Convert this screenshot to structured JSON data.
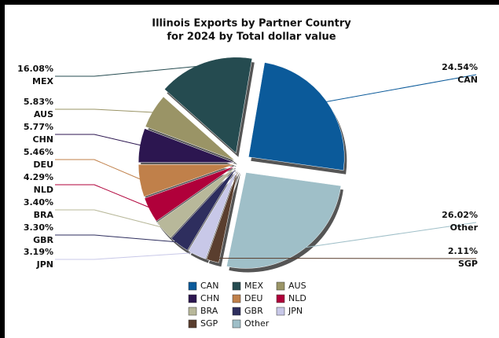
{
  "chart_data": {
    "type": "pie",
    "title": [
      "Illinois Exports by Partner Country",
      "for 2024 by Total dollar value"
    ],
    "categories": [
      "CAN",
      "MEX",
      "AUS",
      "CHN",
      "DEU",
      "NLD",
      "BRA",
      "GBR",
      "JPN",
      "SGP",
      "Other"
    ],
    "values": [
      24.54,
      16.08,
      5.83,
      5.77,
      5.46,
      4.29,
      3.4,
      3.3,
      3.19,
      2.11,
      26.02
    ],
    "value_labels": [
      "24.54%",
      "16.08%",
      "5.83%",
      "5.77%",
      "5.46%",
      "4.29%",
      "3.40%",
      "3.30%",
      "3.19%",
      "2.11%",
      "26.02%"
    ],
    "colors": [
      "#0b5a9a",
      "#254b50",
      "#9a9466",
      "#2c1650",
      "#c0804a",
      "#b0003a",
      "#b8b89a",
      "#2e2e5e",
      "#c8c8e8",
      "#5a3e2e",
      "#9fbfc8"
    ],
    "legend": "bottom"
  }
}
